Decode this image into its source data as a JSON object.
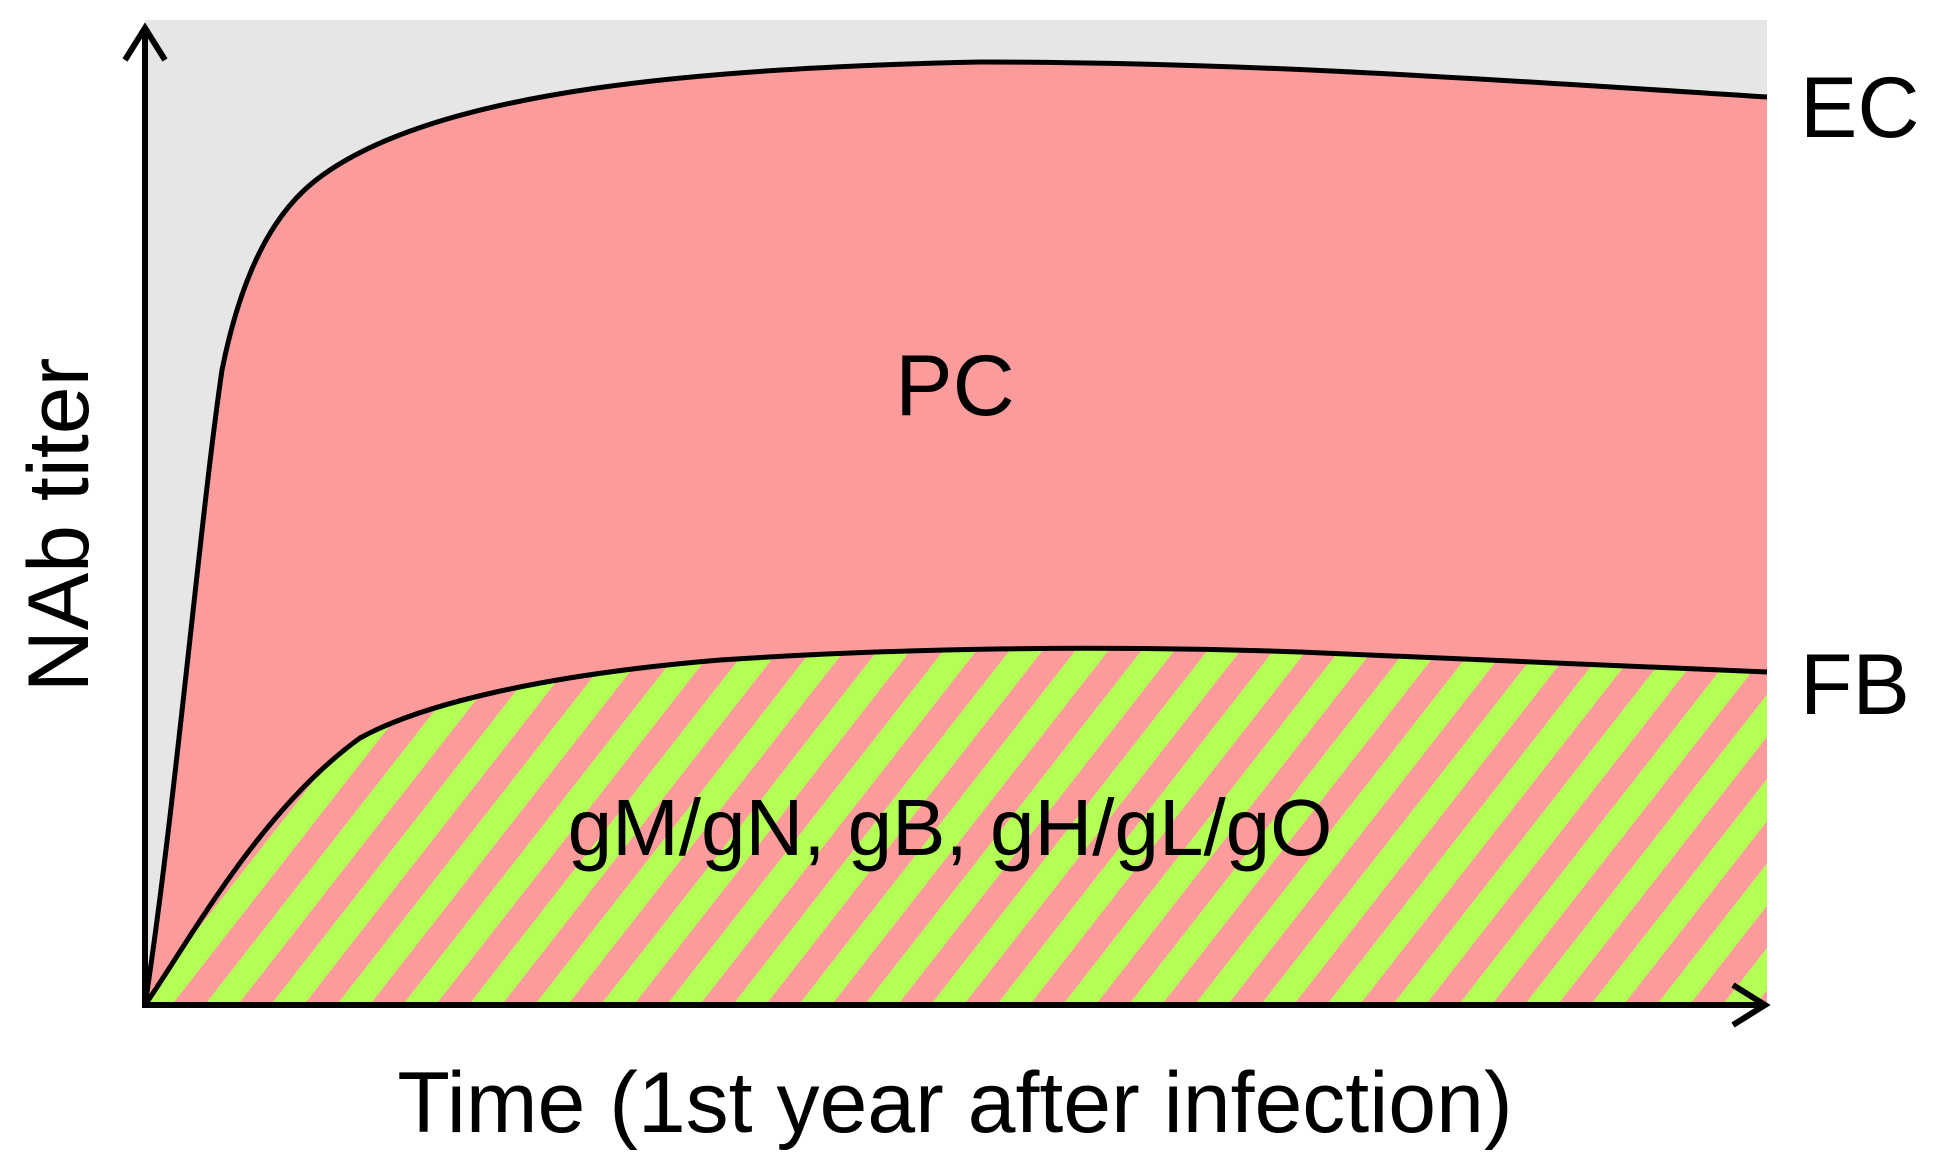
{
  "axes": {
    "x_label": "Time (1st year after infection)",
    "y_label": "NAb titer"
  },
  "curves": {
    "upper_label": "EC",
    "lower_label": "FB"
  },
  "regions": {
    "middle_label": "PC",
    "lower_label": "gM/gN, gB, gH/gL/gO"
  },
  "colors": {
    "background_region": "#e6e6e6",
    "middle_region": "#fc9b9b",
    "stripe_green": "#b3ff55",
    "stripe_pink": "#fc9b9b",
    "lines": "#000000"
  }
}
